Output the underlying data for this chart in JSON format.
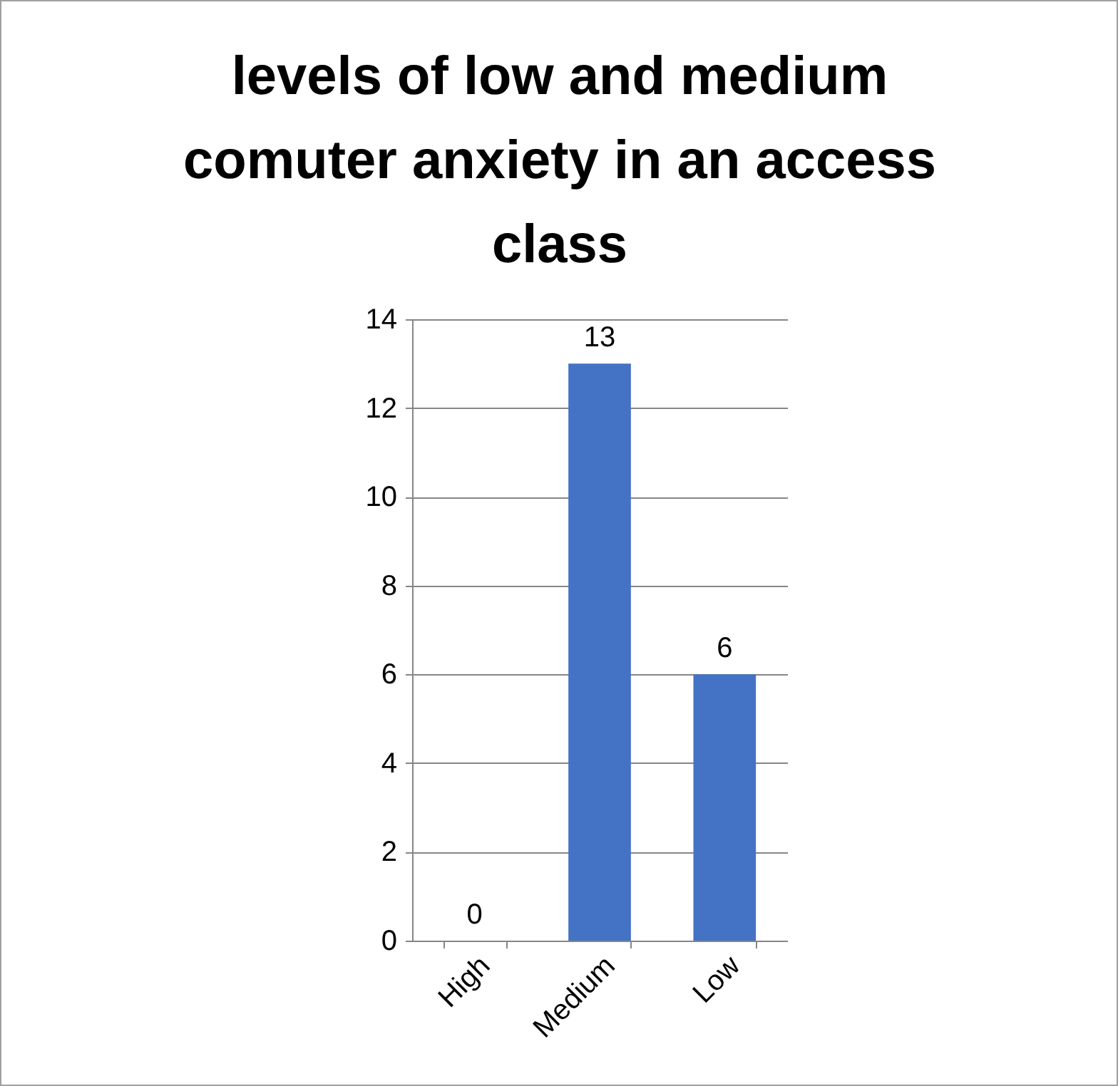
{
  "chart_data": {
    "type": "bar",
    "title": "levels of low and medium comuter anxiety in an access class",
    "categories": [
      "High",
      "Medium",
      "Low"
    ],
    "values": [
      0,
      13,
      6
    ],
    "color": "#4472c4",
    "ylim": [
      0,
      14
    ],
    "yticks": [
      0,
      2,
      4,
      6,
      8,
      10,
      12,
      14
    ],
    "grid": "y",
    "data_labels": true
  }
}
